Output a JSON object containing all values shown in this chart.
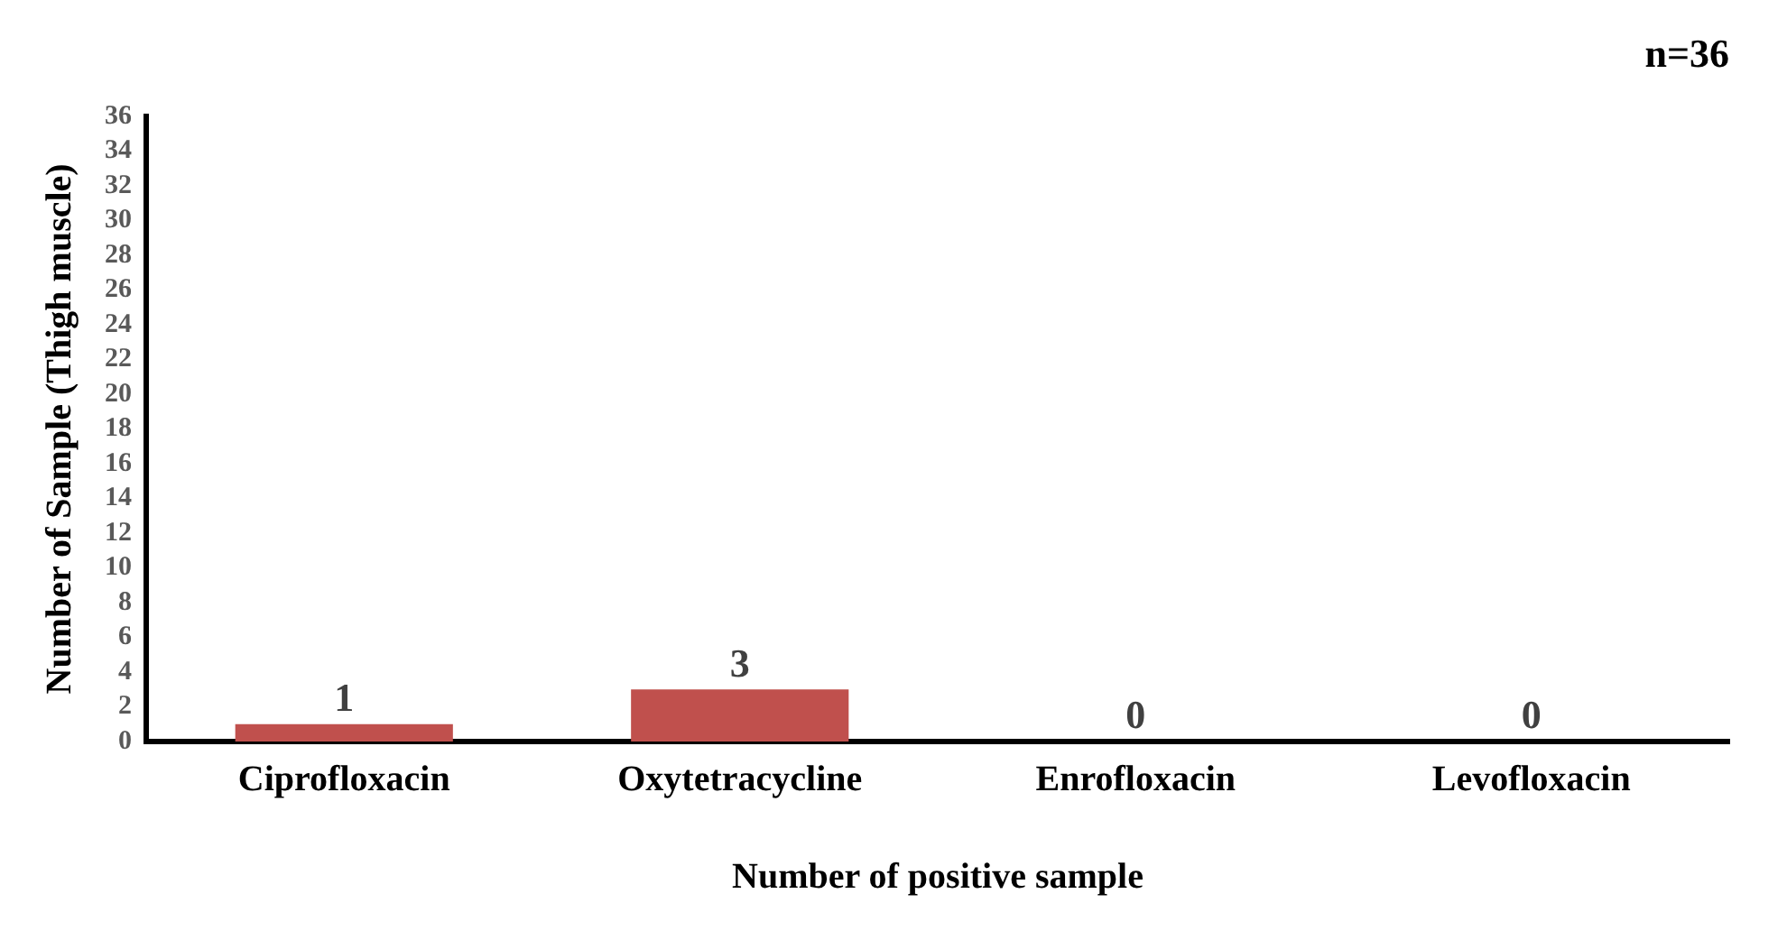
{
  "chart_data": {
    "type": "bar",
    "title": "n=36",
    "xlabel": "Number of positive sample",
    "ylabel": "Number of Sample (Thigh muscle)",
    "categories": [
      "Ciprofloxacin",
      "Oxytetracycline",
      "Enrofloxacin",
      "Levofloxacin"
    ],
    "values": [
      1,
      3,
      0,
      0
    ],
    "color": "#c0504d",
    "ylim": [
      0,
      36
    ],
    "yticks": [
      0,
      2,
      4,
      6,
      8,
      10,
      12,
      14,
      16,
      18,
      20,
      22,
      24,
      26,
      28,
      30,
      32,
      34,
      36
    ],
    "grid": false,
    "legend": false,
    "data_labels": true
  }
}
